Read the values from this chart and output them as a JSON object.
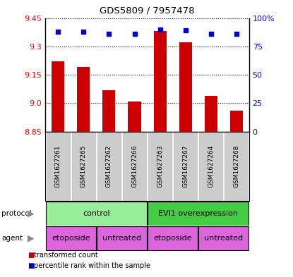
{
  "title": "GDS5809 / 7957478",
  "samples": [
    "GSM1627261",
    "GSM1627265",
    "GSM1627262",
    "GSM1627266",
    "GSM1627263",
    "GSM1627267",
    "GSM1627264",
    "GSM1627268"
  ],
  "red_values": [
    9.22,
    9.19,
    9.07,
    9.01,
    9.38,
    9.32,
    9.04,
    8.96
  ],
  "blue_values": [
    88,
    88,
    86,
    86,
    90,
    89,
    86,
    86
  ],
  "y_min": 8.85,
  "y_max": 9.45,
  "y_ticks_left": [
    8.85,
    9.0,
    9.15,
    9.3,
    9.45
  ],
  "y_ticks_right": [
    0,
    25,
    50,
    75,
    100
  ],
  "protocol_labels": [
    "control",
    "EVI1 overexpression"
  ],
  "protocol_colors": [
    "#99ee99",
    "#44cc44"
  ],
  "agent_labels": [
    "etoposide",
    "untreated",
    "etoposide",
    "untreated"
  ],
  "agent_color": "#dd66dd",
  "bar_color": "#cc0000",
  "dot_color": "#0000cc",
  "bg_color": "#cccccc",
  "legend_red_label": "transformed count",
  "legend_blue_label": "percentile rank within the sample",
  "fig_width": 4.15,
  "fig_height": 3.93
}
